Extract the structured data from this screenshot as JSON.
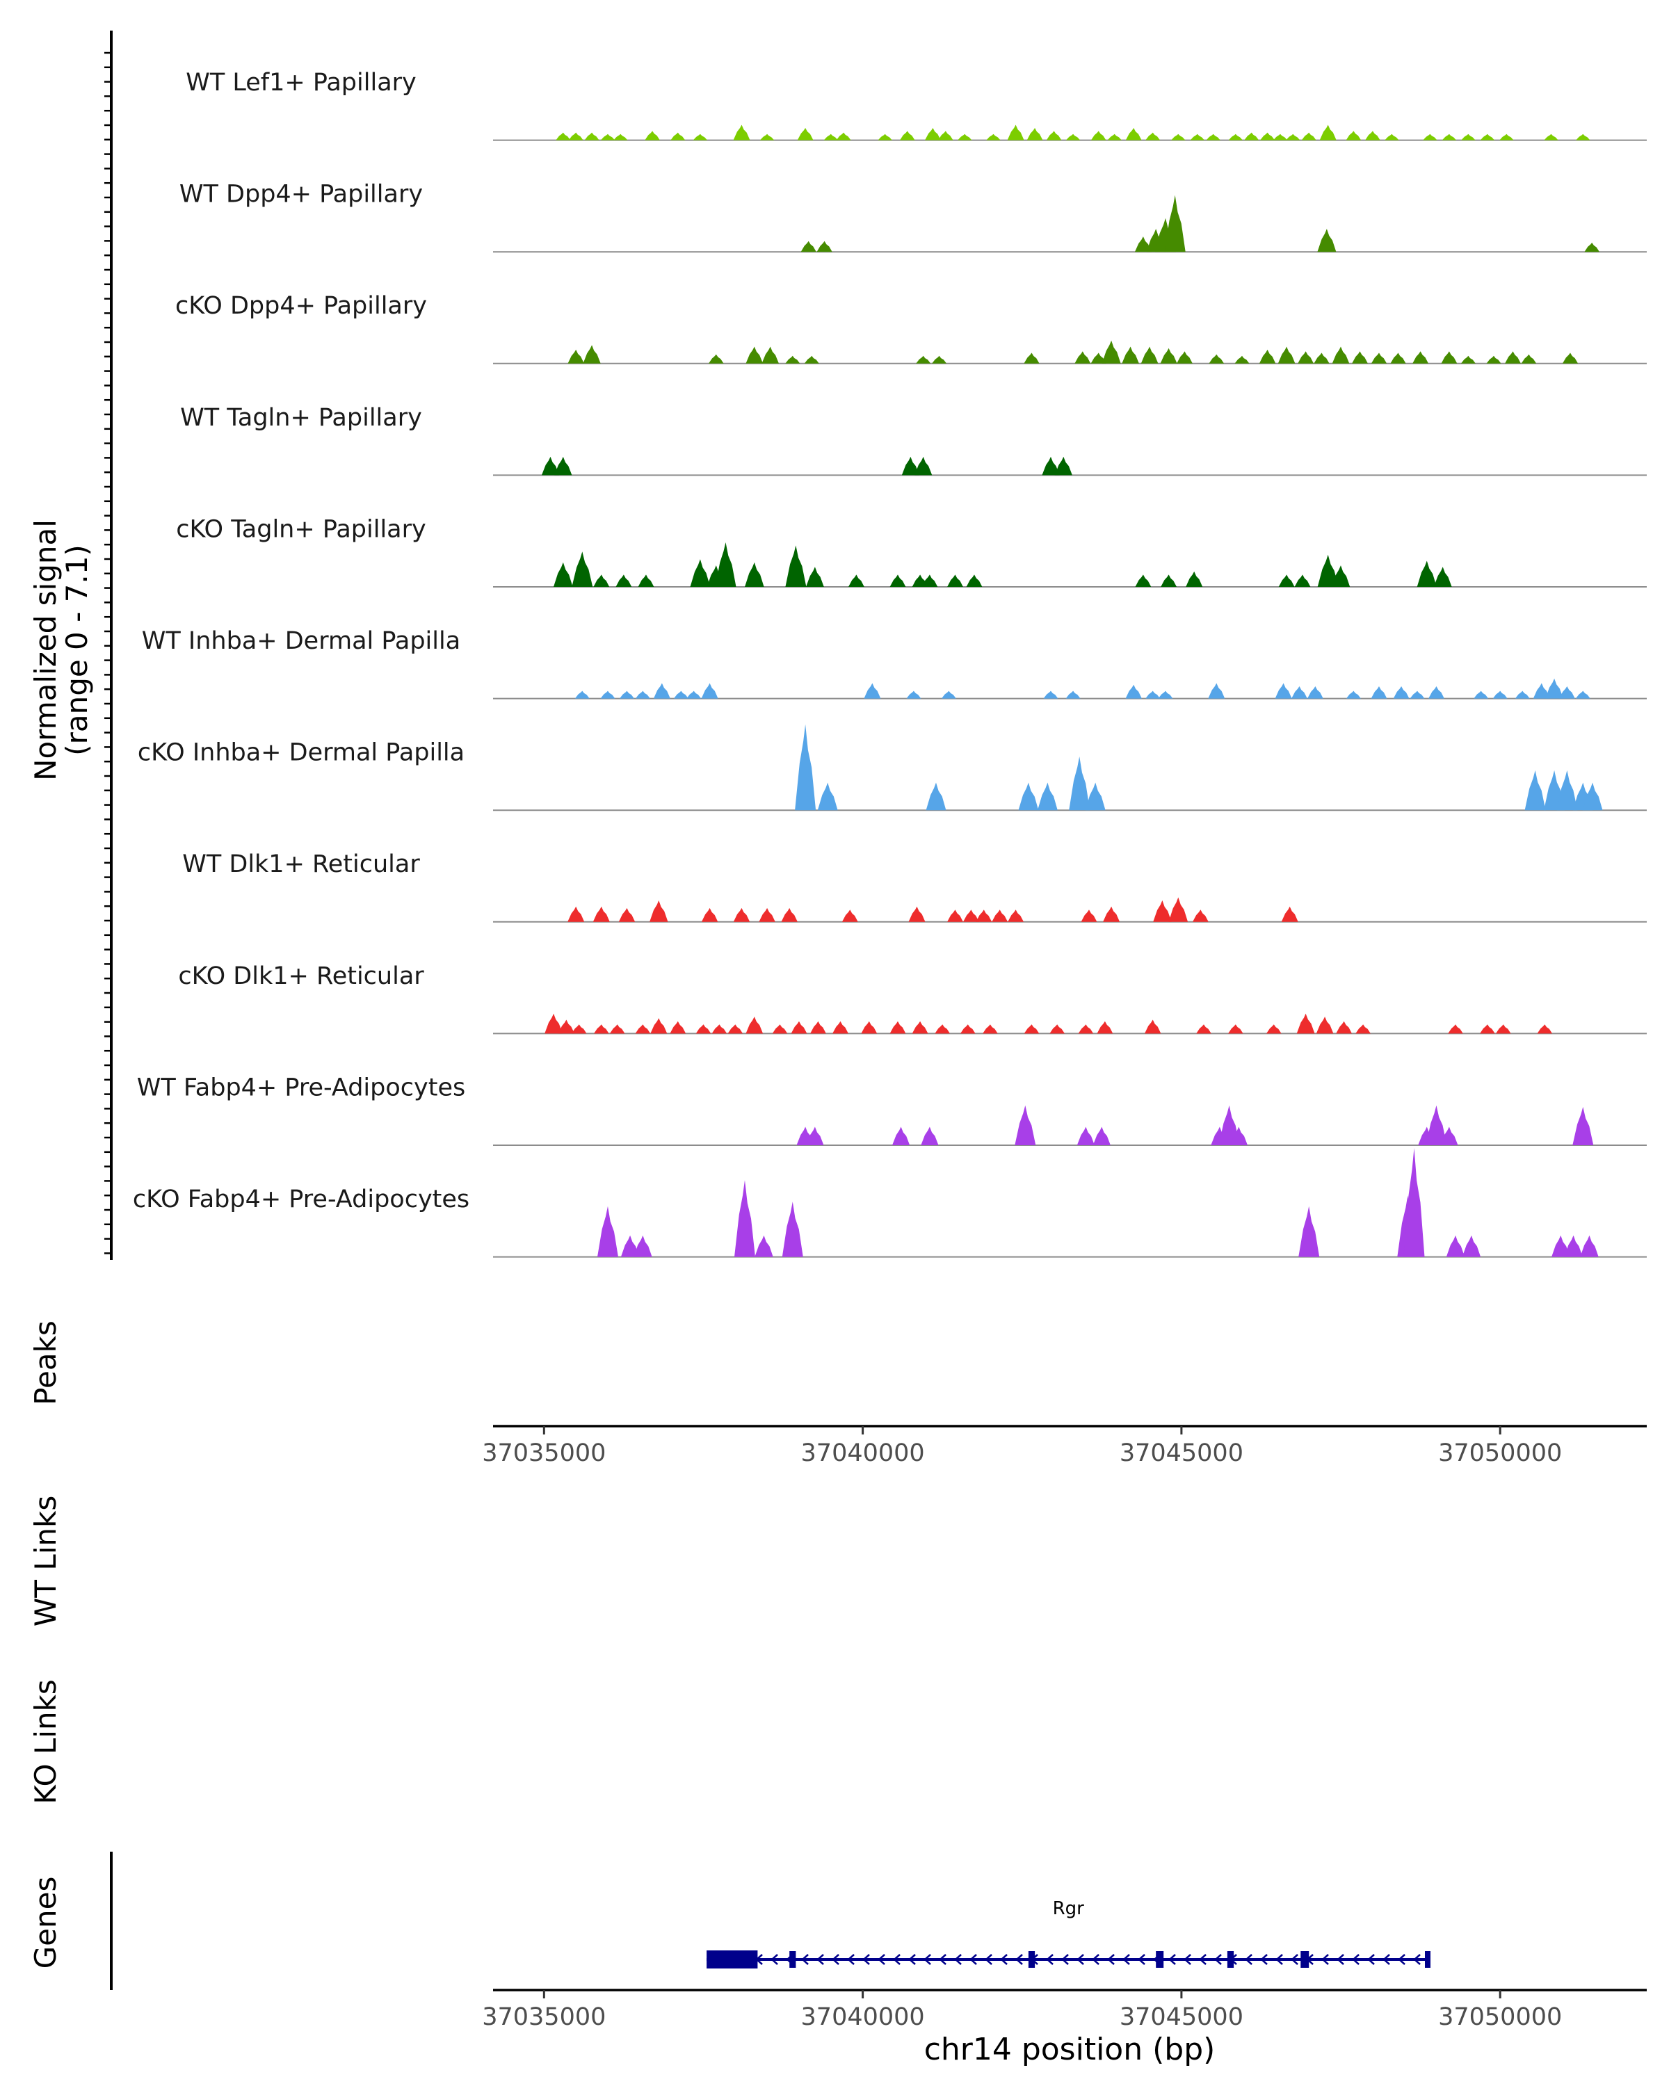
{
  "chart_data": {
    "type": "coverage",
    "title": "",
    "y_label_line1": "Normalized signal",
    "y_label_line2": "(range 0 - 7.1)",
    "y_range": [
      0,
      7.1
    ],
    "x_range": [
      37034200,
      37052300
    ],
    "xlabel": "chr14 position (bp)",
    "x_ticks": [
      37035000,
      37040000,
      37045000,
      37050000
    ],
    "x_tick_labels": [
      "37035000",
      "37040000",
      "37045000",
      "37050000"
    ],
    "track_labels": {
      "peaks": "Peaks",
      "wt_links": "WT Links",
      "ko_links": "KO Links",
      "genes": "Genes"
    },
    "tracks": [
      {
        "name": "WT Lef1+ Papillary",
        "color": "#7CCD00",
        "peaks": [
          [
            37035300,
            0.5
          ],
          [
            37035500,
            0.5
          ],
          [
            37035750,
            0.5
          ],
          [
            37036000,
            0.4
          ],
          [
            37036200,
            0.4
          ],
          [
            37036700,
            0.6
          ],
          [
            37037100,
            0.5
          ],
          [
            37037450,
            0.4
          ],
          [
            37038100,
            1.0
          ],
          [
            37038500,
            0.4
          ],
          [
            37039100,
            0.8
          ],
          [
            37039500,
            0.4
          ],
          [
            37039700,
            0.5
          ],
          [
            37040350,
            0.4
          ],
          [
            37040700,
            0.6
          ],
          [
            37041100,
            0.8
          ],
          [
            37041300,
            0.6
          ],
          [
            37041600,
            0.4
          ],
          [
            37042050,
            0.4
          ],
          [
            37042400,
            1.0
          ],
          [
            37042700,
            0.8
          ],
          [
            37043000,
            0.6
          ],
          [
            37043300,
            0.4
          ],
          [
            37043700,
            0.6
          ],
          [
            37043950,
            0.4
          ],
          [
            37044250,
            0.8
          ],
          [
            37044550,
            0.5
          ],
          [
            37044950,
            0.4
          ],
          [
            37045250,
            0.4
          ],
          [
            37045500,
            0.4
          ],
          [
            37045850,
            0.4
          ],
          [
            37046100,
            0.5
          ],
          [
            37046350,
            0.5
          ],
          [
            37046550,
            0.4
          ],
          [
            37046750,
            0.4
          ],
          [
            37047000,
            0.5
          ],
          [
            37047300,
            1.0
          ],
          [
            37047700,
            0.6
          ],
          [
            37048000,
            0.6
          ],
          [
            37048300,
            0.4
          ],
          [
            37048900,
            0.4
          ],
          [
            37049200,
            0.4
          ],
          [
            37049500,
            0.4
          ],
          [
            37049800,
            0.4
          ],
          [
            37050100,
            0.4
          ],
          [
            37050800,
            0.4
          ],
          [
            37051300,
            0.4
          ]
        ]
      },
      {
        "name": "WT Dpp4+ Papillary",
        "color": "#458B00",
        "peaks": [
          [
            37039150,
            0.7
          ],
          [
            37039400,
            0.7
          ],
          [
            37044400,
            1.0
          ],
          [
            37044600,
            1.5
          ],
          [
            37044750,
            2.2
          ],
          [
            37044900,
            3.7
          ],
          [
            37047280,
            1.5
          ],
          [
            37051440,
            0.6
          ]
        ]
      },
      {
        "name": "cKO Dpp4+ Papillary",
        "color": "#458B00",
        "peaks": [
          [
            37035500,
            0.9
          ],
          [
            37035750,
            1.2
          ],
          [
            37037700,
            0.6
          ],
          [
            37038300,
            1.1
          ],
          [
            37038550,
            1.1
          ],
          [
            37038900,
            0.5
          ],
          [
            37039200,
            0.5
          ],
          [
            37040950,
            0.5
          ],
          [
            37041200,
            0.5
          ],
          [
            37042650,
            0.7
          ],
          [
            37043450,
            0.8
          ],
          [
            37043700,
            0.7
          ],
          [
            37043900,
            1.5
          ],
          [
            37044200,
            1.1
          ],
          [
            37044500,
            1.1
          ],
          [
            37044800,
            1.0
          ],
          [
            37045050,
            0.8
          ],
          [
            37045550,
            0.6
          ],
          [
            37045950,
            0.5
          ],
          [
            37046350,
            0.9
          ],
          [
            37046650,
            1.1
          ],
          [
            37046950,
            0.8
          ],
          [
            37047200,
            0.7
          ],
          [
            37047500,
            1.1
          ],
          [
            37047800,
            0.8
          ],
          [
            37048100,
            0.7
          ],
          [
            37048400,
            0.7
          ],
          [
            37048750,
            0.8
          ],
          [
            37049200,
            0.8
          ],
          [
            37049500,
            0.5
          ],
          [
            37049900,
            0.5
          ],
          [
            37050200,
            0.8
          ],
          [
            37050450,
            0.6
          ],
          [
            37051100,
            0.7
          ]
        ]
      },
      {
        "name": "WT Tagln+ Papillary",
        "color": "#006400",
        "peaks": [
          [
            37035100,
            1.2
          ],
          [
            37035300,
            1.2
          ],
          [
            37040750,
            1.2
          ],
          [
            37040950,
            1.2
          ],
          [
            37042950,
            1.2
          ],
          [
            37043150,
            1.2
          ]
        ]
      },
      {
        "name": "cKO Tagln+ Papillary",
        "color": "#006400",
        "peaks": [
          [
            37035300,
            1.6
          ],
          [
            37035600,
            2.3
          ],
          [
            37035900,
            0.8
          ],
          [
            37036250,
            0.8
          ],
          [
            37036600,
            0.8
          ],
          [
            37037450,
            1.8
          ],
          [
            37037700,
            1.4
          ],
          [
            37037850,
            2.9
          ],
          [
            37038300,
            1.6
          ],
          [
            37038950,
            2.7
          ],
          [
            37039250,
            1.3
          ],
          [
            37039900,
            0.8
          ],
          [
            37040550,
            0.8
          ],
          [
            37040900,
            0.8
          ],
          [
            37041050,
            0.8
          ],
          [
            37041450,
            0.8
          ],
          [
            37041750,
            0.8
          ],
          [
            37044400,
            0.8
          ],
          [
            37044800,
            0.8
          ],
          [
            37045200,
            1.0
          ],
          [
            37046650,
            0.8
          ],
          [
            37046900,
            0.8
          ],
          [
            37047300,
            2.1
          ],
          [
            37047500,
            1.4
          ],
          [
            37048850,
            1.7
          ],
          [
            37049100,
            1.3
          ]
        ]
      },
      {
        "name": "WT Inhba+ Dermal Papilla",
        "color": "#56A5E8",
        "peaks": [
          [
            37035600,
            0.5
          ],
          [
            37036000,
            0.5
          ],
          [
            37036300,
            0.5
          ],
          [
            37036550,
            0.5
          ],
          [
            37036850,
            1.0
          ],
          [
            37037150,
            0.5
          ],
          [
            37037350,
            0.5
          ],
          [
            37037600,
            1.0
          ],
          [
            37040150,
            1.0
          ],
          [
            37040800,
            0.5
          ],
          [
            37041350,
            0.5
          ],
          [
            37042950,
            0.5
          ],
          [
            37043300,
            0.5
          ],
          [
            37044250,
            0.9
          ],
          [
            37044550,
            0.5
          ],
          [
            37044750,
            0.5
          ],
          [
            37045550,
            1.0
          ],
          [
            37046600,
            1.0
          ],
          [
            37046850,
            0.8
          ],
          [
            37047100,
            0.8
          ],
          [
            37047700,
            0.5
          ],
          [
            37048100,
            0.8
          ],
          [
            37048450,
            0.8
          ],
          [
            37048700,
            0.5
          ],
          [
            37049000,
            0.8
          ],
          [
            37049700,
            0.5
          ],
          [
            37050000,
            0.5
          ],
          [
            37050350,
            0.5
          ],
          [
            37050650,
            1.0
          ],
          [
            37050850,
            1.3
          ],
          [
            37051050,
            0.8
          ],
          [
            37051300,
            0.5
          ]
        ]
      },
      {
        "name": "cKO Inhba+ Dermal Papilla",
        "color": "#56A5E8",
        "peaks": [
          [
            37039100,
            5.6
          ],
          [
            37039450,
            1.8
          ],
          [
            37041150,
            1.8
          ],
          [
            37042600,
            1.8
          ],
          [
            37042900,
            1.8
          ],
          [
            37043400,
            3.5
          ],
          [
            37043650,
            1.8
          ],
          [
            37050550,
            2.6
          ],
          [
            37050850,
            2.6
          ],
          [
            37051050,
            2.6
          ],
          [
            37051300,
            1.8
          ],
          [
            37051450,
            1.8
          ]
        ]
      },
      {
        "name": "WT Dlk1+ Reticular",
        "color": "#EE2C2C",
        "peaks": [
          [
            37035500,
            1.0
          ],
          [
            37035900,
            1.0
          ],
          [
            37036300,
            0.9
          ],
          [
            37036800,
            1.4
          ],
          [
            37037600,
            0.9
          ],
          [
            37038100,
            0.9
          ],
          [
            37038500,
            0.9
          ],
          [
            37038850,
            0.9
          ],
          [
            37039800,
            0.8
          ],
          [
            37040850,
            1.0
          ],
          [
            37041450,
            0.8
          ],
          [
            37041700,
            0.8
          ],
          [
            37041900,
            0.8
          ],
          [
            37042150,
            0.8
          ],
          [
            37042400,
            0.8
          ],
          [
            37043550,
            0.8
          ],
          [
            37043900,
            1.0
          ],
          [
            37044700,
            1.4
          ],
          [
            37044950,
            1.6
          ],
          [
            37045300,
            0.8
          ],
          [
            37046700,
            1.0
          ]
        ]
      },
      {
        "name": "cKO Dlk1+ Reticular",
        "color": "#EE2C2C",
        "peaks": [
          [
            37035150,
            1.3
          ],
          [
            37035350,
            0.9
          ],
          [
            37035550,
            0.6
          ],
          [
            37035900,
            0.6
          ],
          [
            37036150,
            0.6
          ],
          [
            37036550,
            0.6
          ],
          [
            37036800,
            1.0
          ],
          [
            37037100,
            0.8
          ],
          [
            37037500,
            0.6
          ],
          [
            37037750,
            0.6
          ],
          [
            37038000,
            0.6
          ],
          [
            37038300,
            1.1
          ],
          [
            37038700,
            0.6
          ],
          [
            37039000,
            0.8
          ],
          [
            37039300,
            0.8
          ],
          [
            37039650,
            0.8
          ],
          [
            37040100,
            0.8
          ],
          [
            37040550,
            0.8
          ],
          [
            37040900,
            0.8
          ],
          [
            37041250,
            0.6
          ],
          [
            37041650,
            0.6
          ],
          [
            37042000,
            0.6
          ],
          [
            37042650,
            0.6
          ],
          [
            37043050,
            0.6
          ],
          [
            37043500,
            0.6
          ],
          [
            37043800,
            0.8
          ],
          [
            37044550,
            0.9
          ],
          [
            37045350,
            0.6
          ],
          [
            37045850,
            0.6
          ],
          [
            37046450,
            0.6
          ],
          [
            37046950,
            1.3
          ],
          [
            37047250,
            1.1
          ],
          [
            37047550,
            0.8
          ],
          [
            37047850,
            0.6
          ],
          [
            37049300,
            0.6
          ],
          [
            37049800,
            0.6
          ],
          [
            37050050,
            0.6
          ],
          [
            37050700,
            0.6
          ]
        ]
      },
      {
        "name": "WT Fabp4+ Pre-Adipocytes",
        "color": "#A83FE8",
        "peaks": [
          [
            37039100,
            1.2
          ],
          [
            37039250,
            1.2
          ],
          [
            37040600,
            1.2
          ],
          [
            37041050,
            1.2
          ],
          [
            37042550,
            2.6
          ],
          [
            37043500,
            1.2
          ],
          [
            37043750,
            1.2
          ],
          [
            37045600,
            1.2
          ],
          [
            37045750,
            2.6
          ],
          [
            37045900,
            1.2
          ],
          [
            37048850,
            1.2
          ],
          [
            37049000,
            2.6
          ],
          [
            37049200,
            1.2
          ],
          [
            37051300,
            2.5
          ]
        ]
      },
      {
        "name": "cKO Fabp4+ Pre-Adipocytes",
        "color": "#A83FE8",
        "peaks": [
          [
            37036000,
            3.3
          ],
          [
            37036350,
            1.4
          ],
          [
            37036550,
            1.4
          ],
          [
            37038150,
            5.0
          ],
          [
            37038450,
            1.4
          ],
          [
            37038900,
            3.6
          ],
          [
            37047000,
            3.3
          ],
          [
            37048550,
            4.0
          ],
          [
            37048650,
            7.1
          ],
          [
            37049300,
            1.4
          ],
          [
            37049550,
            1.4
          ],
          [
            37050950,
            1.4
          ],
          [
            37051150,
            1.4
          ],
          [
            37051400,
            1.4
          ]
        ]
      }
    ],
    "gene": {
      "name": "Rgr",
      "strand": "-",
      "start": 37037550,
      "end": 37048900,
      "color": "#00008B",
      "exons": [
        [
          37037550,
          37038350
        ],
        [
          37038850,
          37038950
        ],
        [
          37042600,
          37042700
        ],
        [
          37044600,
          37044720
        ],
        [
          37045720,
          37045820
        ],
        [
          37046870,
          37047000
        ],
        [
          37048820,
          37048900
        ]
      ]
    }
  }
}
